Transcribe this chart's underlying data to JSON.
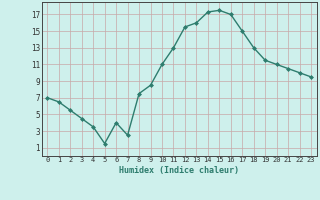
{
  "x": [
    0,
    1,
    2,
    3,
    4,
    5,
    6,
    7,
    8,
    9,
    10,
    11,
    12,
    13,
    14,
    15,
    16,
    17,
    18,
    19,
    20,
    21,
    22,
    23
  ],
  "y": [
    7,
    6.5,
    5.5,
    4.5,
    3.5,
    1.5,
    4,
    2.5,
    7.5,
    8.5,
    11,
    13,
    15.5,
    16,
    17.3,
    17.5,
    17,
    15,
    13,
    11.5,
    11,
    10.5,
    10,
    9.5
  ],
  "line_color": "#2e7d6e",
  "marker_color": "#2e7d6e",
  "bg_color": "#cef0ec",
  "grid_color": "#c8a8a8",
  "xlabel": "Humidex (Indice chaleur)",
  "ytick_values": [
    1,
    3,
    5,
    7,
    9,
    11,
    13,
    15,
    17
  ],
  "ytick_labels": [
    "1",
    "3",
    "5",
    "7",
    "9",
    "11",
    "13",
    "15",
    "17"
  ],
  "xtick_values": [
    0,
    1,
    2,
    3,
    4,
    5,
    6,
    7,
    8,
    9,
    10,
    11,
    12,
    13,
    14,
    15,
    16,
    17,
    18,
    19,
    20,
    21,
    22,
    23
  ],
  "xtick_labels": [
    "0",
    "1",
    "2",
    "3",
    "4",
    "5",
    "6",
    "7",
    "8",
    "9",
    "10",
    "11",
    "12",
    "13",
    "14",
    "15",
    "16",
    "17",
    "18",
    "19",
    "20",
    "21",
    "22",
    "23"
  ],
  "xlim": [
    -0.5,
    23.5
  ],
  "ylim": [
    0,
    18.5
  ]
}
